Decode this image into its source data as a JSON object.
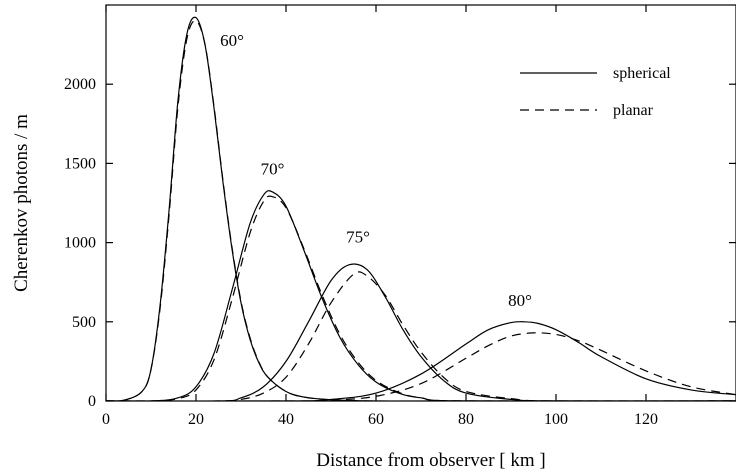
{
  "chart_data": {
    "type": "line",
    "title": "",
    "xlabel": "Distance from observer  [ km ]",
    "ylabel": "Cherenkov photons / m",
    "xlim": [
      0,
      140
    ],
    "ylim": [
      0,
      2500
    ],
    "x_ticks": [
      0,
      20,
      40,
      60,
      80,
      100,
      120
    ],
    "y_ticks": [
      0,
      500,
      1000,
      1500,
      2000
    ],
    "grid": false,
    "legend": {
      "position": "top-right",
      "entries": [
        {
          "label": "spherical",
          "style": "solid"
        },
        {
          "label": "planar",
          "style": "dashed"
        }
      ]
    },
    "annotations": [
      {
        "text": "60°",
        "x": 28,
        "y": 2240
      },
      {
        "text": "70°",
        "x": 37,
        "y": 1430
      },
      {
        "text": "75°",
        "x": 56,
        "y": 1000
      },
      {
        "text": "80°",
        "x": 92,
        "y": 600
      }
    ],
    "series": [
      {
        "name": "spherical",
        "zenith": "60°",
        "style": "solid",
        "x": [
          0,
          4,
          8,
          10,
          12,
          14,
          16,
          18,
          20,
          22,
          24,
          26,
          28,
          30,
          32,
          34,
          36,
          40,
          44,
          50,
          60,
          80,
          140
        ],
        "y": [
          0,
          5,
          60,
          200,
          600,
          1200,
          1900,
          2320,
          2420,
          2250,
          1850,
          1380,
          960,
          620,
          390,
          240,
          150,
          60,
          25,
          8,
          0,
          0,
          0
        ]
      },
      {
        "name": "planar",
        "zenith": "60°",
        "style": "dashed",
        "x": [
          0,
          4,
          8,
          10,
          12,
          14,
          16,
          18,
          20,
          22,
          24,
          26,
          28,
          30,
          32,
          34,
          36,
          40,
          44,
          50,
          60,
          80,
          140
        ],
        "y": [
          0,
          5,
          60,
          200,
          580,
          1170,
          1860,
          2290,
          2400,
          2250,
          1860,
          1390,
          970,
          630,
          400,
          245,
          150,
          60,
          25,
          8,
          0,
          0,
          0
        ]
      },
      {
        "name": "spherical",
        "zenith": "70°",
        "style": "solid",
        "x": [
          0,
          10,
          16,
          20,
          24,
          28,
          32,
          35,
          37,
          40,
          44,
          48,
          52,
          56,
          60,
          65,
          70,
          80,
          140
        ],
        "y": [
          0,
          0,
          20,
          90,
          300,
          700,
          1120,
          1300,
          1320,
          1230,
          950,
          650,
          400,
          230,
          120,
          50,
          20,
          0,
          0
        ]
      },
      {
        "name": "planar",
        "zenith": "70°",
        "style": "dashed",
        "x": [
          0,
          10,
          16,
          20,
          24,
          28,
          32,
          35,
          37,
          40,
          44,
          48,
          52,
          56,
          60,
          65,
          70,
          80,
          140
        ],
        "y": [
          0,
          0,
          15,
          70,
          260,
          640,
          1060,
          1260,
          1290,
          1220,
          960,
          670,
          420,
          245,
          130,
          55,
          20,
          0,
          0
        ]
      },
      {
        "name": "spherical",
        "zenith": "75°",
        "style": "solid",
        "x": [
          0,
          25,
          30,
          35,
          40,
          45,
          50,
          54,
          58,
          62,
          66,
          70,
          75,
          80,
          90,
          100,
          140
        ],
        "y": [
          0,
          0,
          20,
          90,
          250,
          500,
          760,
          860,
          830,
          660,
          450,
          280,
          130,
          50,
          10,
          0,
          0
        ]
      },
      {
        "name": "planar",
        "zenith": "75°",
        "style": "dashed",
        "x": [
          0,
          25,
          30,
          35,
          40,
          45,
          50,
          55,
          58,
          62,
          66,
          70,
          75,
          80,
          90,
          100,
          140
        ],
        "y": [
          0,
          0,
          10,
          50,
          150,
          360,
          620,
          800,
          790,
          670,
          480,
          310,
          150,
          60,
          15,
          0,
          0
        ]
      },
      {
        "name": "spherical",
        "zenith": "80°",
        "style": "solid",
        "x": [
          0,
          40,
          50,
          60,
          70,
          80,
          85,
          90,
          93,
          96,
          100,
          105,
          110,
          120,
          130,
          140
        ],
        "y": [
          0,
          0,
          10,
          50,
          170,
          360,
          450,
          495,
          500,
          490,
          450,
          370,
          280,
          140,
          70,
          40
        ]
      },
      {
        "name": "planar",
        "zenith": "80°",
        "style": "dashed",
        "x": [
          0,
          40,
          50,
          60,
          70,
          80,
          85,
          90,
          95,
          100,
          105,
          110,
          120,
          130,
          140
        ],
        "y": [
          0,
          0,
          5,
          30,
          110,
          270,
          350,
          410,
          430,
          420,
          380,
          320,
          190,
          90,
          40
        ]
      }
    ]
  }
}
